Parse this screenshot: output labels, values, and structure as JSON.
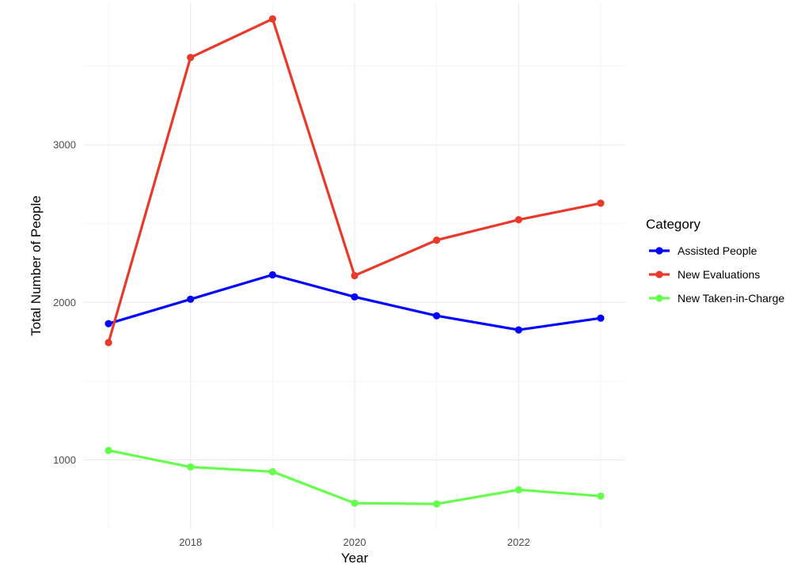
{
  "chart_data": {
    "type": "line",
    "title": "",
    "xlabel": "Year",
    "ylabel": "Total Number of People",
    "x": [
      2017,
      2018,
      2019,
      2020,
      2021,
      2022,
      2023
    ],
    "xlim": [
      2016.7,
      2023.3
    ],
    "ylim": [
      565,
      3900
    ],
    "xticks": [
      2018,
      2020,
      2022
    ],
    "yticks": [
      1000,
      2000,
      3000
    ],
    "grid": true,
    "legend": {
      "title": "Category",
      "position": "right"
    },
    "series": [
      {
        "name": "Assisted People",
        "color": "#0000ff",
        "values": [
          1865,
          2020,
          2175,
          2035,
          1915,
          1825,
          1900
        ]
      },
      {
        "name": "New Evaluations",
        "color": "#e8392a",
        "values": [
          1745,
          3555,
          3800,
          2170,
          2395,
          2525,
          2630
        ]
      },
      {
        "name": "New Taken-in-Charge",
        "color": "#66ff4d",
        "values": [
          1060,
          955,
          925,
          725,
          720,
          810,
          770
        ]
      }
    ]
  }
}
